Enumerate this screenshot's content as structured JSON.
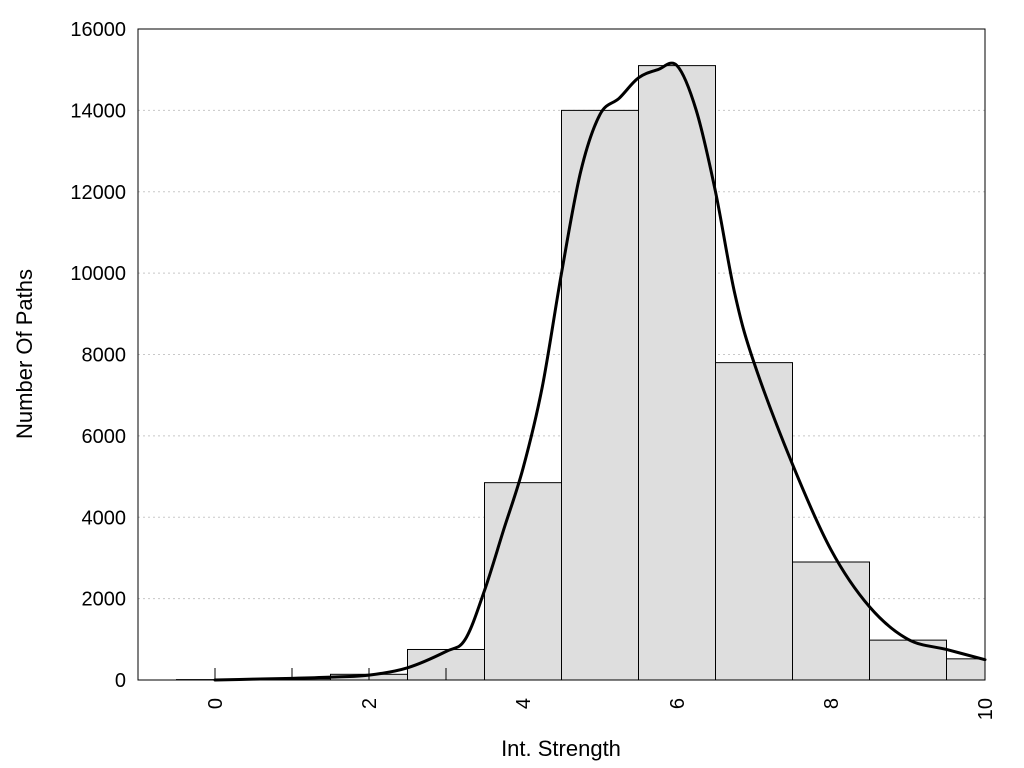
{
  "chart_data": {
    "type": "bar",
    "xlabel": "Int. Strength",
    "ylabel": "Number Of Paths",
    "xlim": [
      -1,
      10
    ],
    "ylim": [
      0,
      16000
    ],
    "xticks": [
      0,
      2,
      4,
      6,
      8,
      10
    ],
    "yticks": [
      0,
      2000,
      4000,
      6000,
      8000,
      10000,
      12000,
      14000,
      16000
    ],
    "grid": "horizontal dotted",
    "legend": "none",
    "bin_width": 1,
    "bars": {
      "x": [
        0,
        1,
        2,
        3,
        4,
        5,
        6,
        7,
        8,
        9,
        10
      ],
      "values": [
        10,
        30,
        140,
        750,
        4850,
        14000,
        15100,
        7800,
        2900,
        980,
        520
      ]
    },
    "curve": {
      "x": [
        0,
        0.5,
        1,
        1.5,
        2,
        2.5,
        3,
        3.25,
        3.5,
        3.75,
        4,
        4.25,
        4.5,
        4.75,
        5,
        5.25,
        5.5,
        5.75,
        6,
        6.25,
        6.5,
        6.75,
        7,
        7.5,
        8,
        8.5,
        9,
        9.5,
        10
      ],
      "y": [
        0,
        20,
        40,
        70,
        120,
        300,
        700,
        1000,
        2200,
        3700,
        5200,
        7200,
        10000,
        12500,
        13900,
        14300,
        14800,
        15000,
        15100,
        14000,
        12000,
        9500,
        7800,
        5300,
        3200,
        1800,
        1000,
        750,
        500
      ]
    },
    "colors": {
      "bar_fill": "#dedede",
      "bar_stroke": "#000000",
      "curve": "#000000"
    }
  }
}
